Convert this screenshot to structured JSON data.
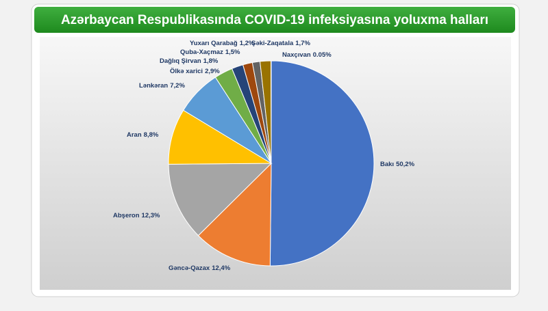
{
  "chart_data": {
    "type": "pie",
    "title": "Azərbaycan Respublikasında COVID-19 infeksiyasına yoluxma halları",
    "categories": [
      "Bakı",
      "Gəncə-Qazax",
      "Abşeron",
      "Aran",
      "Lənkəran",
      "Ölkə xarici",
      "Dağlıq Şirvan",
      "Quba-Xaçmaz",
      "Yuxarı Qarabağ",
      "Şəki-Zaqatala",
      "Naxçıvan"
    ],
    "values": [
      50.2,
      12.4,
      12.3,
      8.8,
      7.2,
      2.9,
      1.8,
      1.5,
      1.2,
      1.7,
      0.05
    ],
    "value_labels": [
      "50,2%",
      "12,4%",
      "12,3%",
      "8,8%",
      "7,2%",
      "2,9%",
      "1,8%",
      "1,5%",
      "1,2%",
      "1,7%",
      "0.05%"
    ],
    "colors": [
      "#4472c4",
      "#ed7d31",
      "#a5a5a5",
      "#ffc000",
      "#5b9bd5",
      "#70ad47",
      "#264478",
      "#9e480e",
      "#636363",
      "#997300",
      "#255e91"
    ]
  }
}
